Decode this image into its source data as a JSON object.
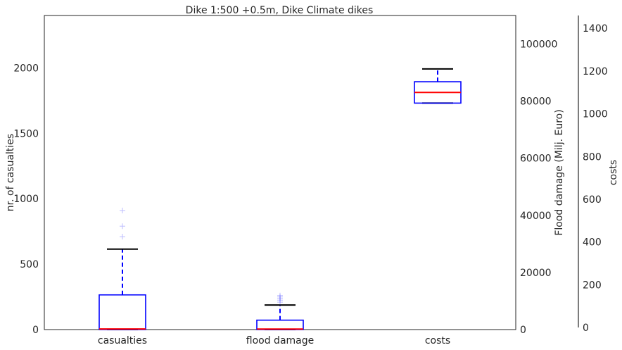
{
  "chart_data": {
    "type": "box",
    "title": "Dike 1:500 +0.5m, Dike Climate dikes",
    "categories": [
      "casualties",
      "flood damage",
      "costs"
    ],
    "axes": [
      {
        "id": "casualties_axis",
        "label": "nr. of casualties",
        "position": "left",
        "range": [
          0,
          2400
        ],
        "ticks": [
          0,
          500,
          1000,
          1500,
          2000
        ]
      },
      {
        "id": "flood_damage_axis",
        "label": "Flood damage (Milj. Euro)",
        "position": "right",
        "range": [
          0,
          110000
        ],
        "ticks": [
          0,
          20000,
          40000,
          60000,
          80000,
          100000
        ]
      },
      {
        "id": "costs_axis",
        "label": "costs",
        "position": "right-outer",
        "range": [
          0,
          1460
        ],
        "ticks": [
          0,
          200,
          400,
          600,
          800,
          1000,
          1200,
          1400
        ]
      }
    ],
    "boxes": [
      {
        "category": "casualties",
        "axis": "casualties_axis",
        "whisker_low": 0,
        "q1": 0,
        "median": 5,
        "q3": 265,
        "whisker_high": 615,
        "outliers": [
          710,
          790,
          910
        ]
      },
      {
        "category": "flood damage",
        "axis": "flood_damage_axis",
        "whisker_low": 0,
        "q1": 0,
        "median": 200,
        "q3": 3300,
        "whisker_high": 8600,
        "outliers": [
          9600,
          10300,
          10900,
          11400,
          11900
        ]
      },
      {
        "category": "costs",
        "axis": "costs_axis",
        "whisker_low": 1050,
        "q1": 1050,
        "median": 1100,
        "q3": 1150,
        "whisker_high": 1210,
        "outliers": []
      }
    ],
    "colors": {
      "box": "#0000ff",
      "median": "#ff0000",
      "whisker": "#0000ff",
      "cap": "#000000",
      "outlier": "#0000ff"
    },
    "grid": false,
    "legend": "none"
  }
}
